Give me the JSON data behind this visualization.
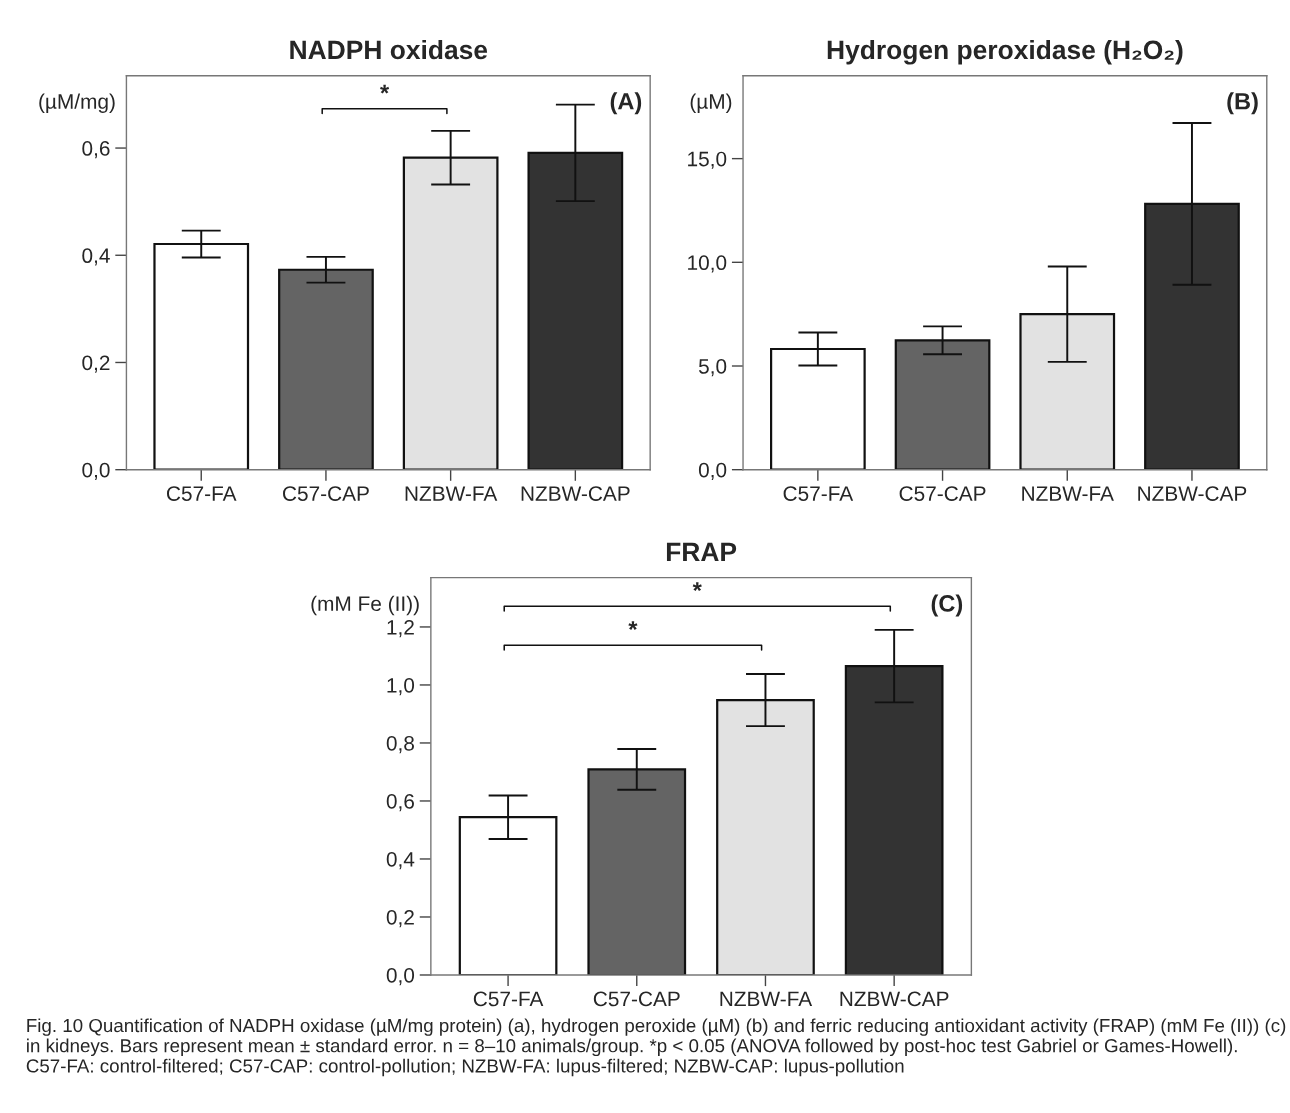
{
  "chart_data": [
    {
      "type": "bar",
      "title": "NADPH oxidase",
      "ylabel": "(µM/mg)",
      "categories": [
        "C57-FA",
        "C57-CAP",
        "NZBW-FA",
        "NZBW-CAP"
      ],
      "values": [
        0.421,
        0.373,
        0.582,
        0.591
      ],
      "errors": [
        0.025,
        0.024,
        0.05,
        0.09
      ],
      "colors": [
        "#ffffff",
        "#646464",
        "#e2e2e2",
        "#333333"
      ],
      "ylim": [
        0,
        0.735
      ],
      "yticks": [
        {
          "value": 0,
          "label": "0,0"
        },
        {
          "value": 0.2,
          "label": "0,2"
        },
        {
          "value": 0.4,
          "label": "0,4"
        },
        {
          "value": 0.6,
          "label": "0,6"
        }
      ],
      "annotations": [
        "(A)",
        "*"
      ],
      "grid": false,
      "legend": false
    },
    {
      "type": "bar",
      "title": "Hydrogen peroxidase (H₂O₂)",
      "ylabel": "(µM)",
      "categories": [
        "C57-FA",
        "C57-CAP",
        "NZBW-FA",
        "NZBW-CAP"
      ],
      "values": [
        5.82,
        6.24,
        7.5,
        12.82
      ],
      "errors": [
        0.8,
        0.67,
        2.3,
        3.9
      ],
      "colors": [
        "#ffffff",
        "#646464",
        "#e2e2e2",
        "#333333"
      ],
      "ylim": [
        0,
        19
      ],
      "yticks": [
        {
          "value": 0,
          "label": "0,0"
        },
        {
          "value": 5,
          "label": "5,0"
        },
        {
          "value": 10,
          "label": "10,0"
        },
        {
          "value": 15,
          "label": "15,0"
        }
      ],
      "annotations": [
        "(B)"
      ],
      "grid": false,
      "legend": false
    },
    {
      "type": "bar",
      "title": "FRAP",
      "ylabel": "(mM Fe (II))",
      "categories": [
        "C57-FA",
        "C57-CAP",
        "NZBW-FA",
        "NZBW-CAP"
      ],
      "values": [
        0.544,
        0.709,
        0.948,
        1.065
      ],
      "errors": [
        0.075,
        0.07,
        0.09,
        0.125
      ],
      "colors": [
        "#ffffff",
        "#646464",
        "#e2e2e2",
        "#333333"
      ],
      "ylim": [
        0,
        1.37
      ],
      "yticks": [
        {
          "value": 0,
          "label": "0,0"
        },
        {
          "value": 0.2,
          "label": "0,2"
        },
        {
          "value": 0.4,
          "label": "0,4"
        },
        {
          "value": 0.6,
          "label": "0,6"
        },
        {
          "value": 0.8,
          "label": "0,8"
        },
        {
          "value": 1.0,
          "label": "1,0"
        },
        {
          "value": 1.2,
          "label": "1,2"
        }
      ],
      "annotations": [
        "(C)",
        "*",
        "*",
        "Fig. 10 Quantification of NADPH oxidase (µM/mg protein) (a), hydrogen peroxide (µM) (b) and ferric reducing antioxidant activity (FRAP) (mM Fe (II)) (c) in kidneys. Bars represent mean ± standard error. n = 8–10 animals/group. *p < 0.05 (ANOVA followed by post-hoc test Gabriel or Games-Howell). C57-FA: control-filtered; C57-CAP: control-pollution; NZBW-FA: lupus-filtered; NZBW-CAP: lupus-pollution"
      ],
      "grid": false,
      "legend": false
    }
  ]
}
